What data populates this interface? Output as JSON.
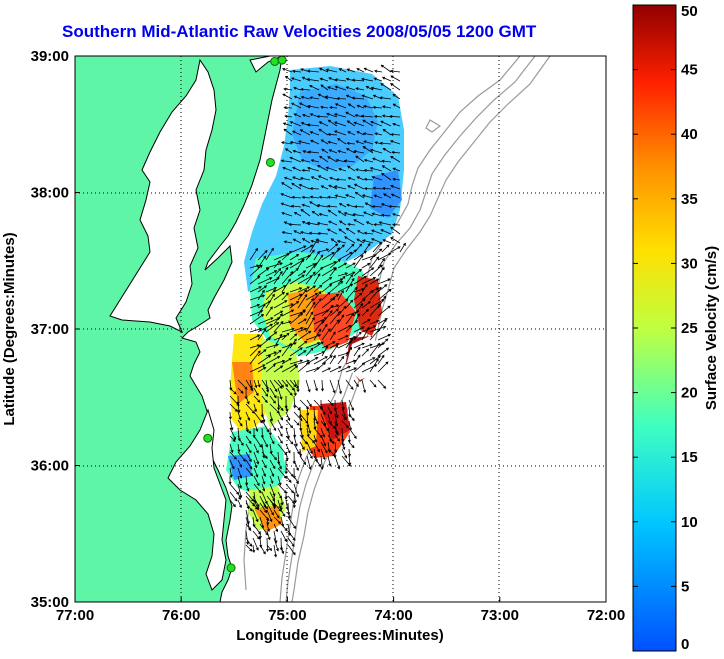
{
  "title": "Southern Mid-Atlantic Raw Velocities 2008/05/05 1200 GMT",
  "map": {
    "xlabel": "Longitude (Degrees:Minutes)",
    "ylabel": "Latitude (Degrees:Minutes)",
    "lon_range": [
      -77,
      -72
    ],
    "lat_range": [
      35,
      39
    ],
    "x_ticks": [
      {
        "lon": -77,
        "label": "77:00"
      },
      {
        "lon": -76,
        "label": "76:00"
      },
      {
        "lon": -75,
        "label": "75:00"
      },
      {
        "lon": -74,
        "label": "74:00"
      },
      {
        "lon": -73,
        "label": "73:00"
      },
      {
        "lon": -72,
        "label": "72:00"
      }
    ],
    "y_ticks": [
      {
        "lat": 39,
        "label": "39:00"
      },
      {
        "lat": 38,
        "label": "38:00"
      },
      {
        "lat": 37,
        "label": "37:00"
      },
      {
        "lat": 36,
        "label": "36:00"
      },
      {
        "lat": 35,
        "label": "35:00"
      }
    ],
    "land_color": "#5ff5a6",
    "grid": "dotted",
    "stations": [
      {
        "lon": -75.12,
        "lat": 38.96
      },
      {
        "lon": -75.05,
        "lat": 38.97
      },
      {
        "lon": -75.16,
        "lat": 38.22
      },
      {
        "lon": -75.75,
        "lat": 36.2
      },
      {
        "lon": -75.53,
        "lat": 35.25
      }
    ]
  },
  "colorbar": {
    "label": "Surface Velocity (cm/s)",
    "min": 0,
    "max": 50,
    "ticks": [
      {
        "value": 0,
        "label": "0"
      },
      {
        "value": 5,
        "label": "5"
      },
      {
        "value": 10,
        "label": "10"
      },
      {
        "value": 15,
        "label": "15"
      },
      {
        "value": 20,
        "label": "20"
      },
      {
        "value": 25,
        "label": "25"
      },
      {
        "value": 30,
        "label": "30"
      },
      {
        "value": 35,
        "label": "35"
      },
      {
        "value": 40,
        "label": "40"
      },
      {
        "value": 45,
        "label": "45"
      },
      {
        "value": 50,
        "label": "50"
      }
    ]
  }
}
